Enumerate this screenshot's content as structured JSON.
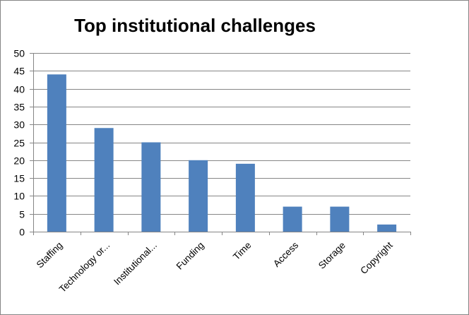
{
  "chart_data": {
    "type": "bar",
    "title": "Top institutional challenges",
    "categories": [
      "Staffing",
      "Technology or...",
      "Institutional...",
      "Funding",
      "Time",
      "Access",
      "Storage",
      "Copyright"
    ],
    "values": [
      44,
      29,
      25,
      20,
      19,
      7,
      7,
      2
    ],
    "xlabel": "",
    "ylabel": "",
    "ylim": [
      0,
      50
    ],
    "yticks": [
      0,
      5,
      10,
      15,
      20,
      25,
      30,
      35,
      40,
      45,
      50
    ],
    "grid": true,
    "legend": "none",
    "bar_color": "#4F81BD"
  }
}
